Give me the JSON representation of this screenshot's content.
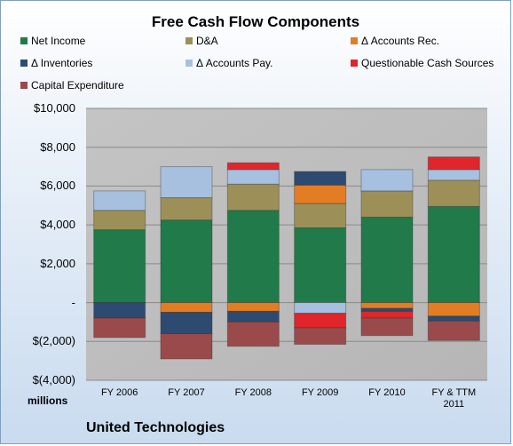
{
  "chart_data": {
    "type": "bar",
    "stacked": true,
    "title": "Free Cash Flow Components",
    "units_label": "millions",
    "company": "United Technologies",
    "categories": [
      "FY 2006",
      "FY 2007",
      "FY 2008",
      "FY 2009",
      "FY 2010",
      "FY & TTM 2011"
    ],
    "ylim": [
      -4000,
      10000
    ],
    "yticks": [
      -4000,
      -2000,
      0,
      2000,
      4000,
      6000,
      8000,
      10000
    ],
    "ytick_labels": [
      "$(4,000)",
      "$(2,000)",
      "-",
      "$2,000",
      "$4,000",
      "$6,000",
      "$8,000",
      "$10,000"
    ],
    "grid": true,
    "legend_position": "top",
    "series": [
      {
        "name": "Net Income",
        "color": "#217a4a",
        "values": [
          3750,
          4250,
          4750,
          3850,
          4400,
          4950
        ]
      },
      {
        "name": "D&A",
        "color": "#9c9058",
        "values": [
          1000,
          1150,
          1350,
          1250,
          1350,
          1350
        ]
      },
      {
        "name": "Δ Accounts Rec.",
        "color": "#e37d24",
        "values": [
          0,
          -500,
          -450,
          950,
          -300,
          -700
        ]
      },
      {
        "name": "Δ Inventories",
        "color": "#2d4b70",
        "values": [
          -800,
          -1100,
          -550,
          700,
          -150,
          -250
        ]
      },
      {
        "name": "Δ Accounts Pay.",
        "color": "#a7c0e0",
        "values": [
          1000,
          1600,
          750,
          -550,
          1100,
          550
        ]
      },
      {
        "name": "Questionable Cash Sources",
        "color": "#e0262a",
        "values": [
          0,
          0,
          350,
          -750,
          -350,
          650
        ]
      },
      {
        "name": "Capital Expenditure",
        "color": "#9b4a4b",
        "values": [
          -1000,
          -1300,
          -1250,
          -850,
          -900,
          -1000
        ]
      }
    ]
  }
}
